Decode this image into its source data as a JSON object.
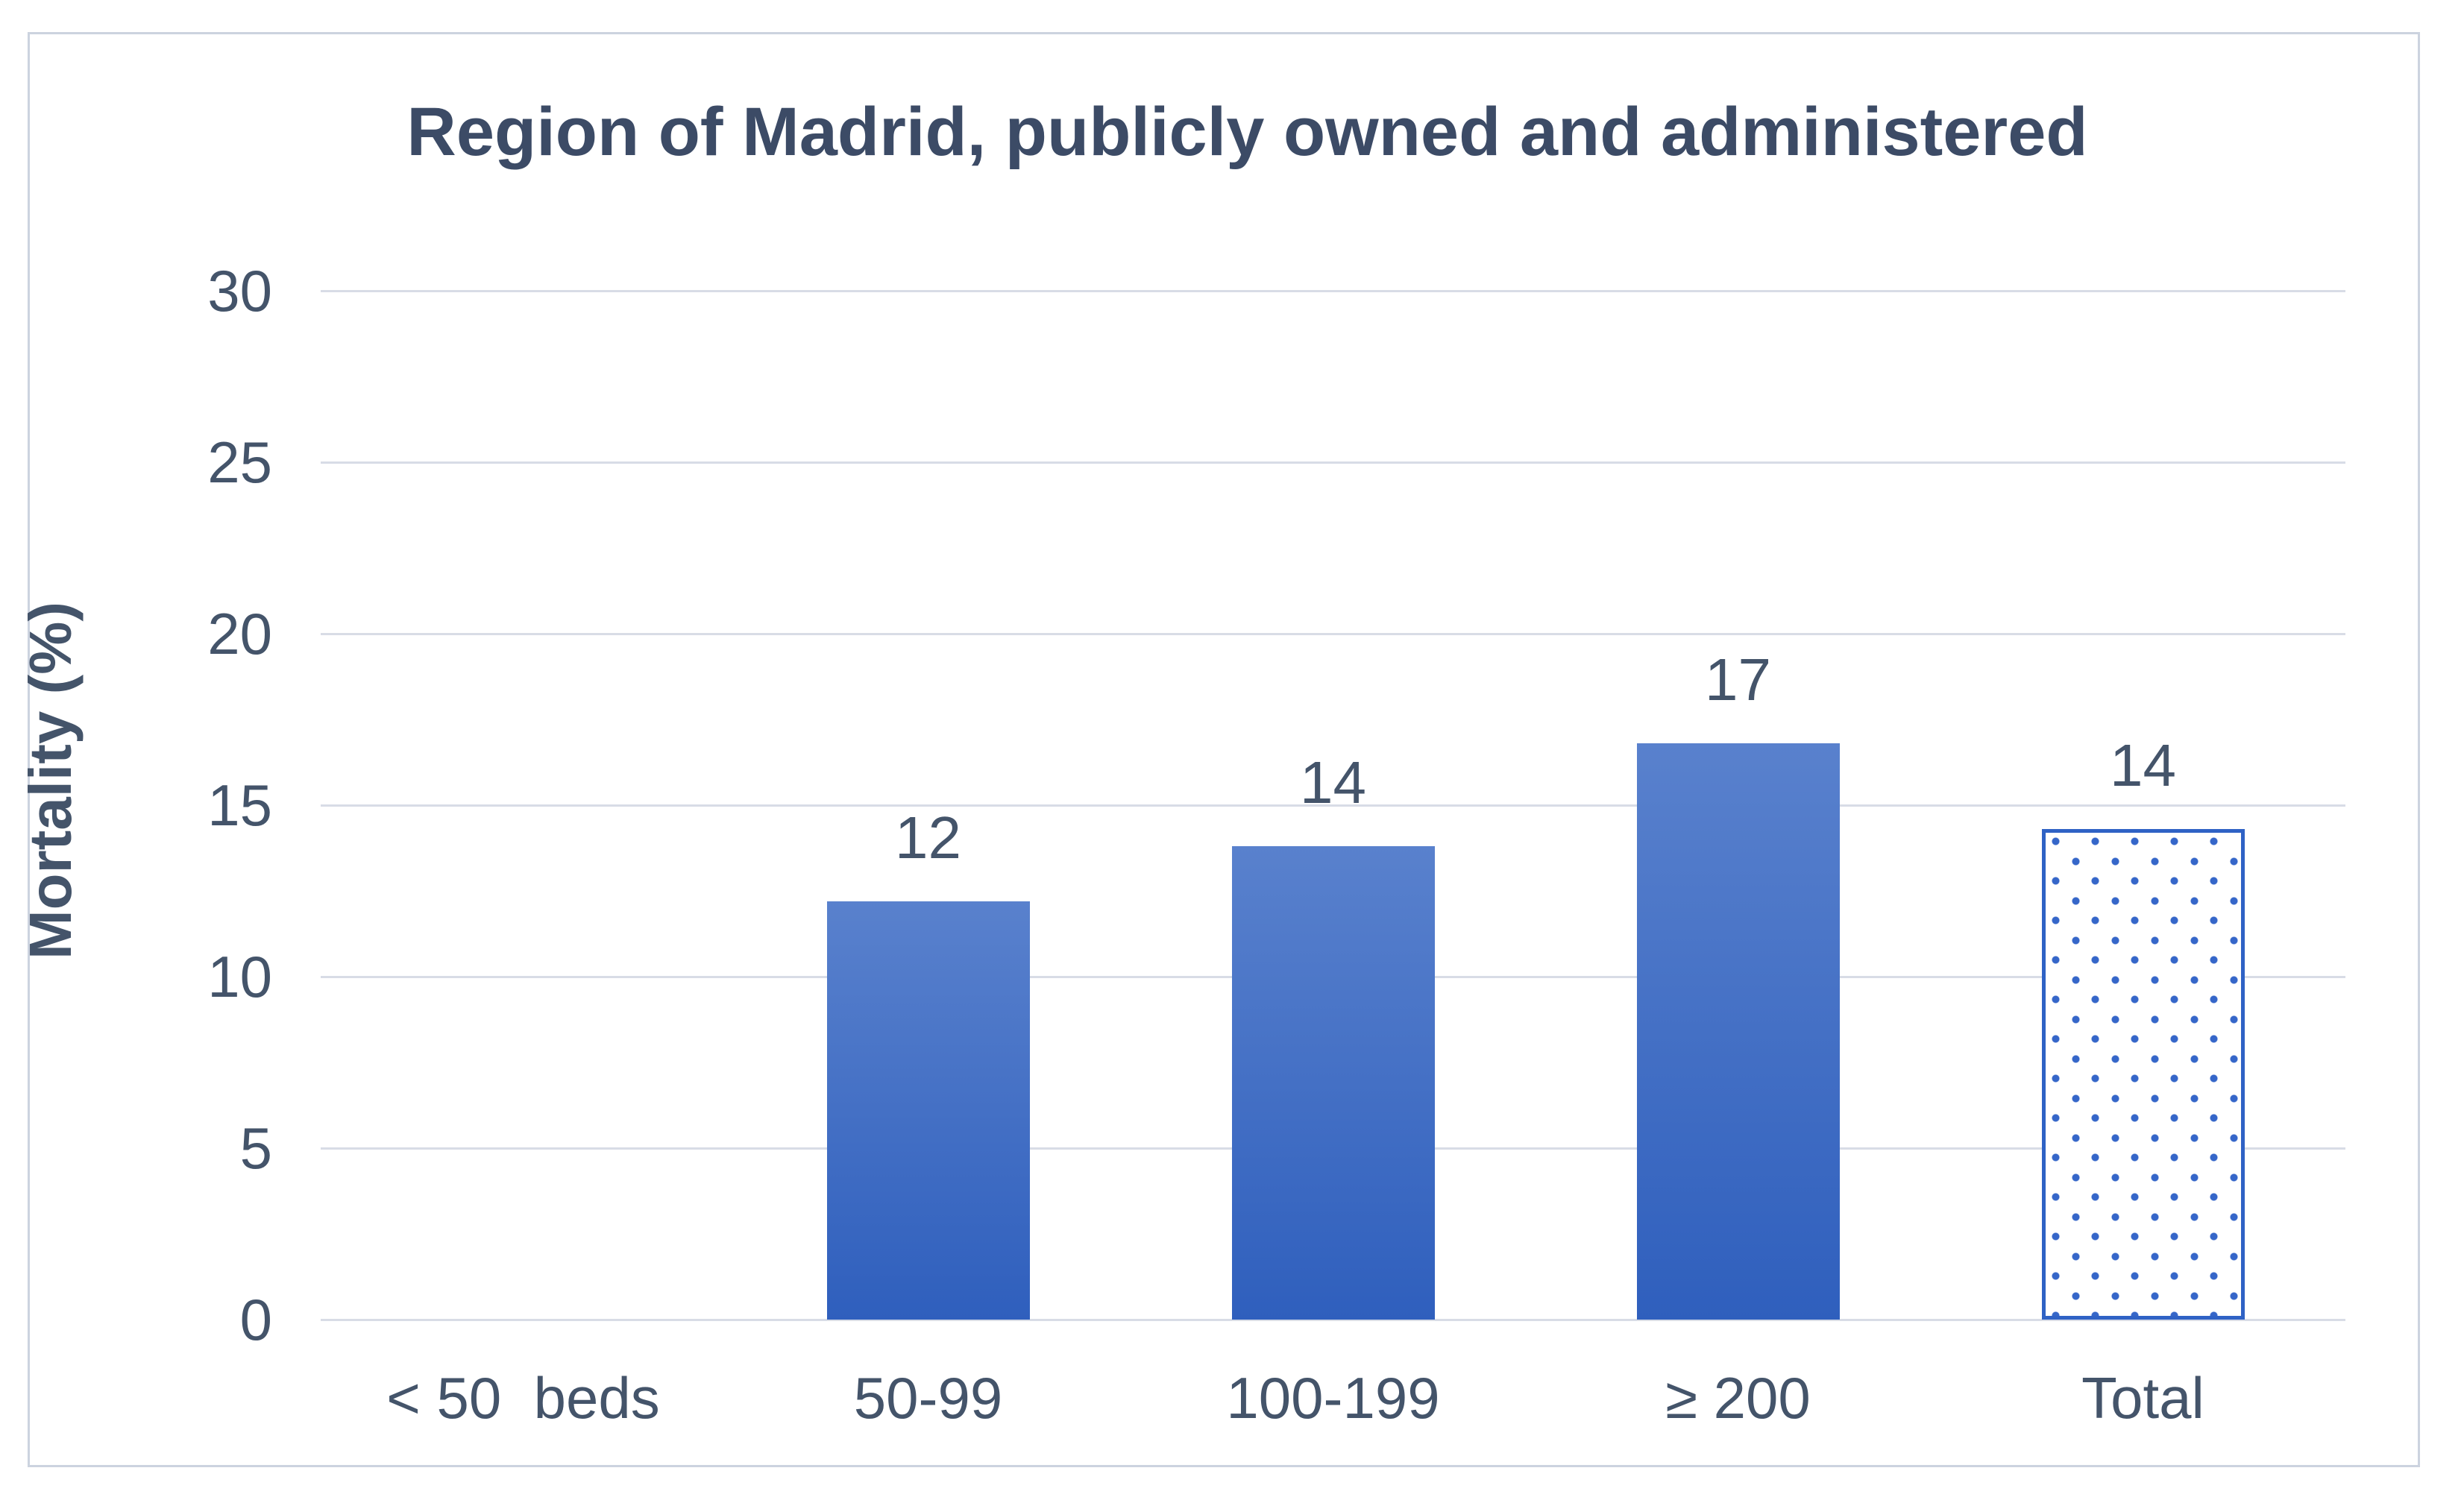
{
  "chart_data": {
    "type": "bar",
    "title": "Region of Madrid, publicly owned and administered",
    "xlabel": "",
    "ylabel": "Mortality (%)",
    "ylim": [
      0,
      30
    ],
    "yticks": [
      0,
      5,
      10,
      15,
      20,
      25,
      30
    ],
    "grid": true,
    "legend": false,
    "categories": [
      "< 50  beds",
      "50-99",
      "100-199",
      "≥ 200",
      "Total"
    ],
    "series": [
      {
        "name": "Mortality (%)",
        "values": [
          null,
          12.2,
          13.8,
          16.8,
          14.3
        ],
        "data_labels": [
          null,
          "12",
          "14",
          "17",
          "14"
        ],
        "bar_styles": [
          null,
          "solid",
          "solid",
          "solid",
          "dotted"
        ]
      }
    ],
    "colors": {
      "bar_gradient_top": "#5981CD",
      "bar_gradient_bottom": "#2F5FBD",
      "dotted_bar_border": "#2F62C5",
      "dotted_bar_dot": "#3566C9",
      "gridline": "#D8DCE6",
      "frame_border": "#CCD3DF",
      "text": "#44546A",
      "title_text": "#3C4B66"
    }
  }
}
